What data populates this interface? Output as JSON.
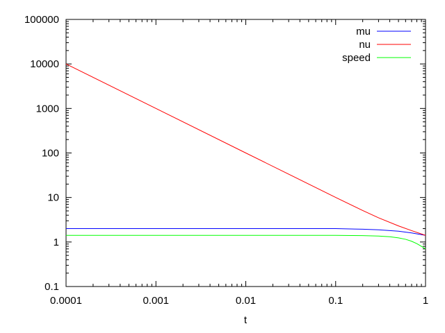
{
  "chart_data": {
    "type": "line",
    "title": "",
    "xlabel": "t",
    "ylabel": "",
    "xscale": "log",
    "yscale": "log",
    "xlim": [
      0.0001,
      1
    ],
    "ylim": [
      0.1,
      100000
    ],
    "grid": false,
    "legend_position": "top-right",
    "x_ticks": [
      {
        "value": 0.0001,
        "label": "0.0001"
      },
      {
        "value": 0.001,
        "label": "0.001"
      },
      {
        "value": 0.01,
        "label": "0.01"
      },
      {
        "value": 0.1,
        "label": "0.1"
      },
      {
        "value": 1,
        "label": "1"
      }
    ],
    "y_ticks": [
      {
        "value": 0.1,
        "label": "0.1"
      },
      {
        "value": 1,
        "label": "1"
      },
      {
        "value": 10,
        "label": "10"
      },
      {
        "value": 100,
        "label": "100"
      },
      {
        "value": 1000,
        "label": "1000"
      },
      {
        "value": 10000,
        "label": "10000"
      },
      {
        "value": 100000,
        "label": "100000"
      }
    ],
    "series": [
      {
        "name": "mu",
        "color": "#0000ff",
        "x": [
          0.0001,
          0.001,
          0.01,
          0.05,
          0.1,
          0.12,
          0.2,
          0.3,
          0.5,
          0.7,
          1
        ],
        "y": [
          2.0,
          2.0,
          2.0,
          2.0,
          2.0,
          1.98,
          1.94,
          1.88,
          1.75,
          1.6,
          1.41
        ]
      },
      {
        "name": "nu",
        "color": "#ff0000",
        "x": [
          0.0001,
          0.001,
          0.01,
          0.1,
          0.2,
          0.3,
          0.5,
          0.7,
          1
        ],
        "y": [
          10000,
          1000,
          100,
          10.05,
          5.1,
          3.5,
          2.3,
          1.8,
          1.41
        ]
      },
      {
        "name": "speed",
        "color": "#00ff00",
        "x": [
          0.0001,
          0.001,
          0.01,
          0.05,
          0.1,
          0.15,
          0.2,
          0.3,
          0.4,
          0.5,
          0.6,
          0.7,
          0.8,
          0.9,
          1
        ],
        "y": [
          1.41,
          1.41,
          1.41,
          1.41,
          1.41,
          1.4,
          1.39,
          1.36,
          1.31,
          1.24,
          1.15,
          1.04,
          0.92,
          0.8,
          0.7
        ]
      }
    ]
  }
}
